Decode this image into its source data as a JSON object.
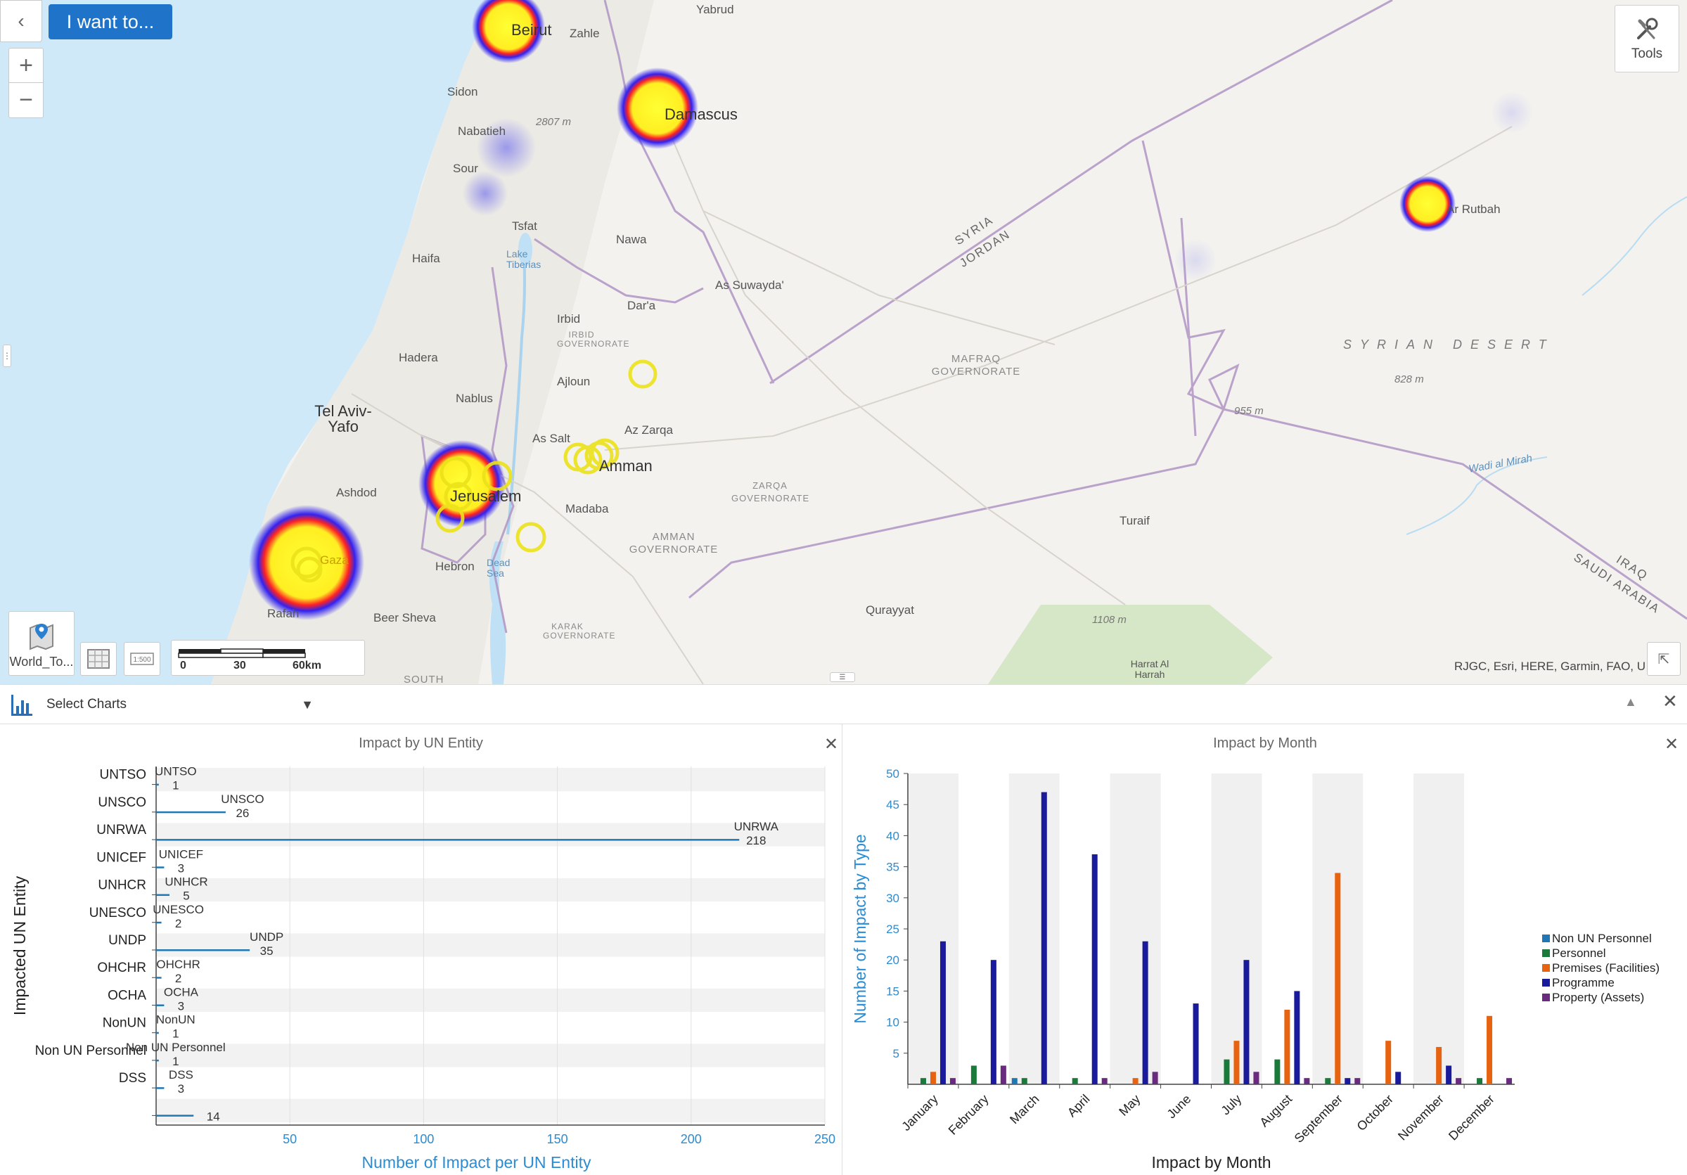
{
  "toolbar": {
    "iwant_label": "I want to...",
    "tools_label": "Tools",
    "basemap_label": "World_To...",
    "chart_select_label": "Select Charts"
  },
  "map": {
    "attribution": "RJGC, Esri, HERE, Garmin, FAO, U",
    "scalebar": {
      "ticks": [
        "0",
        "30",
        "60km"
      ]
    },
    "places": [
      {
        "name": "Beirut",
        "kind": "city"
      },
      {
        "name": "Zahle",
        "kind": "town"
      },
      {
        "name": "Yabrud",
        "kind": "town"
      },
      {
        "name": "Damascus",
        "kind": "city"
      },
      {
        "name": "Sidon",
        "kind": "town"
      },
      {
        "name": "Nabatieh",
        "kind": "town"
      },
      {
        "name": "Sour",
        "kind": "town"
      },
      {
        "name": "Tsfat",
        "kind": "town"
      },
      {
        "name": "Haifa",
        "kind": "town"
      },
      {
        "name": "Nawa",
        "kind": "town"
      },
      {
        "name": "As Suwayda'",
        "kind": "town"
      },
      {
        "name": "Dar'a",
        "kind": "town"
      },
      {
        "name": "Irbid",
        "kind": "town"
      },
      {
        "name": "Hadera",
        "kind": "town"
      },
      {
        "name": "Ajloun",
        "kind": "town"
      },
      {
        "name": "Tel Aviv-Yafo",
        "kind": "city"
      },
      {
        "name": "Nablus",
        "kind": "town"
      },
      {
        "name": "As Salt",
        "kind": "town"
      },
      {
        "name": "Az Zarqa",
        "kind": "town"
      },
      {
        "name": "Amman",
        "kind": "city"
      },
      {
        "name": "Jerusalem",
        "kind": "city"
      },
      {
        "name": "Ashdod",
        "kind": "town"
      },
      {
        "name": "Madaba",
        "kind": "town"
      },
      {
        "name": "Hebron",
        "kind": "town"
      },
      {
        "name": "Gaza",
        "kind": "town"
      },
      {
        "name": "Rafah",
        "kind": "town"
      },
      {
        "name": "Beer Sheva",
        "kind": "town"
      },
      {
        "name": "Turaif",
        "kind": "town"
      },
      {
        "name": "Qurayyat",
        "kind": "town"
      },
      {
        "name": "Ar Rutbah",
        "kind": "town"
      },
      {
        "name": "Dead Sea",
        "kind": "water"
      },
      {
        "name": "Lake Tiberias",
        "kind": "water"
      },
      {
        "name": "Wadi al Mirah",
        "kind": "water"
      },
      {
        "name": "Harrat Al Harrah",
        "kind": "area"
      },
      {
        "name": "SOUTH",
        "kind": "region"
      }
    ],
    "regions": [
      "MAFRAQ GOVERNORATE",
      "ZARQA GOVERNORATE",
      "AMMAN GOVERNORATE",
      "IRBID GOVERNORATE",
      "KARAK GOVERNORATE"
    ],
    "desert": "SYRIAN DESERT",
    "elevations": [
      "2807 m",
      "828 m",
      "955 m",
      "1108 m"
    ],
    "borders": [
      "SYRIA",
      "JORDAN",
      "IRAQ",
      "SAUDI ARABIA"
    ]
  },
  "chart_left": {
    "title": "Impact by UN Entity",
    "xlabel": "Number of Impact per UN Entity",
    "ylabel": "Impacted UN Entity"
  },
  "chart_right": {
    "title": "Impact by Month",
    "xlabel": "Impact by Month",
    "ylabel": "Number of Impact by Type"
  },
  "chart_data": [
    {
      "type": "bar",
      "orientation": "horizontal",
      "title": "Impact by UN Entity",
      "xlabel": "Number of Impact per UN Entity",
      "ylabel": "Impacted UN Entity",
      "categories": [
        "UNTSO",
        "UNSCO",
        "UNRWA",
        "UNICEF",
        "UNHCR",
        "UNESCO",
        "UNDP",
        "OHCHR",
        "OCHA",
        "NonUN",
        "Non UN Personnel",
        "DSS",
        ""
      ],
      "values": [
        1,
        26,
        218,
        3,
        5,
        2,
        35,
        2,
        3,
        1,
        1,
        3,
        14
      ],
      "data_labels": [
        [
          "UNTSO",
          "1"
        ],
        [
          "UNSCO",
          "26"
        ],
        [
          "UNRWA",
          "218"
        ],
        [
          "UNICEF",
          "3"
        ],
        [
          "UNHCR",
          "5"
        ],
        [
          "UNESCO",
          "2"
        ],
        [
          "UNDP",
          "35"
        ],
        [
          "OHCHR",
          "2"
        ],
        [
          "OCHA",
          "3"
        ],
        [
          "NonUN",
          "1"
        ],
        [
          "Non UN Personnel",
          "1"
        ],
        [
          "DSS",
          "3"
        ],
        [
          "",
          "14"
        ]
      ],
      "xlim": [
        0,
        250
      ],
      "xticks": [
        "50",
        "100",
        "150",
        "200",
        "250"
      ],
      "grid": true,
      "bar_color": "#1f77b4"
    },
    {
      "type": "bar",
      "title": "Impact by Month",
      "xlabel": "Impact by Month",
      "ylabel": "Number of Impact by Type",
      "categories": [
        "January",
        "February",
        "March",
        "April",
        "May",
        "June",
        "July",
        "August",
        "September",
        "October",
        "November",
        "December"
      ],
      "series": [
        {
          "name": "Non UN Personnel",
          "color": "#1f77b4",
          "values": [
            0,
            0,
            1,
            0,
            0,
            0,
            0,
            0,
            0,
            0,
            0,
            0
          ]
        },
        {
          "name": "Personnel",
          "color": "#1a7a3a",
          "values": [
            1,
            3,
            1,
            1,
            0,
            0,
            4,
            4,
            1,
            0,
            0,
            1
          ]
        },
        {
          "name": "Premises (Facilities)",
          "color": "#e8630f",
          "values": [
            2,
            0,
            0,
            0,
            1,
            0,
            7,
            12,
            34,
            7,
            6,
            11
          ]
        },
        {
          "name": "Programme",
          "color": "#1a1a9c",
          "values": [
            23,
            20,
            47,
            37,
            23,
            13,
            20,
            15,
            1,
            2,
            3,
            0
          ]
        },
        {
          "name": "Property (Assets)",
          "color": "#6a2a7f",
          "values": [
            1,
            3,
            0,
            1,
            2,
            0,
            2,
            1,
            1,
            0,
            1,
            1
          ]
        }
      ],
      "ylim": [
        0,
        50
      ],
      "yticks": [
        "5",
        "10",
        "15",
        "20",
        "25",
        "30",
        "35",
        "40",
        "45",
        "50"
      ],
      "grid": false,
      "legend": "right"
    }
  ]
}
